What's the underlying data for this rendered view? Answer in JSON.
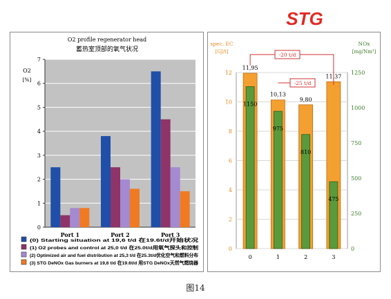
{
  "logo": {
    "text": "STG",
    "color": "#e02a22"
  },
  "caption": "图14",
  "chart_data": [
    {
      "type": "bar",
      "title": "O2 profile regenerator head",
      "subtitle": "蓄热室顶部的氧气状况",
      "ylabel": "O2",
      "yunit": "[%]",
      "ylim": [
        0,
        7
      ],
      "yticks": [
        "0",
        "1",
        "2",
        "3",
        "4",
        "5",
        "6",
        "7"
      ],
      "categories": [
        "Port 1",
        "Port 2",
        "Port 3"
      ],
      "series": [
        {
          "name": "(0) Starting situation at 19,6 t/d 在19.6t/d开始状况",
          "color": "#1f4fa8",
          "values": [
            2.5,
            3.8,
            6.5
          ]
        },
        {
          "name": "(1) O2 probes and control at 25,0 t/d 在25.0t/d用氧气探头和控制",
          "color": "#8e3468",
          "values": [
            0.5,
            2.5,
            4.5
          ]
        },
        {
          "name": "(2) Optimized air and fuel distribution at 25,3 t/d 在25.3t/d优化空气和燃料分布",
          "color": "#a48ad0",
          "values": [
            0.8,
            2.0,
            2.5
          ]
        },
        {
          "name": "(3) STG DeNOx Gas burners at 19,6 t/d 在19.6t/d 用STG DeNOx天然气燃烧器",
          "color": "#f07a22",
          "values": [
            0.8,
            1.6,
            1.5
          ]
        }
      ]
    },
    {
      "type": "bar",
      "categories": [
        "0",
        "1",
        "2",
        "3"
      ],
      "ylabel_left": "spec. EC",
      "yunit_left": "[GJ/t]",
      "ylabel_right": "NOx",
      "yunit_right": "[mg/Nm³]",
      "ylim_left": [
        0,
        12
      ],
      "ylim_right": [
        0,
        1250
      ],
      "yticks_left": [
        "0",
        "2",
        "4",
        "6",
        "8",
        "10",
        "12"
      ],
      "yticks_right": [
        "0",
        "250",
        "500",
        "750",
        "1000",
        "1250"
      ],
      "series": [
        {
          "axis": "left",
          "color": "#f4a030",
          "values": [
            11.95,
            10.13,
            9.8,
            11.37
          ],
          "labels": [
            "11,95",
            "10,13",
            "9,80",
            "11,37"
          ]
        },
        {
          "axis": "right",
          "color": "#5a9a3c",
          "values": [
            1150,
            975,
            810,
            475
          ],
          "labels": [
            "1150",
            "975",
            "810",
            "475"
          ]
        }
      ],
      "annotations": [
        "-20 t/d",
        "-25 t/d"
      ]
    }
  ]
}
